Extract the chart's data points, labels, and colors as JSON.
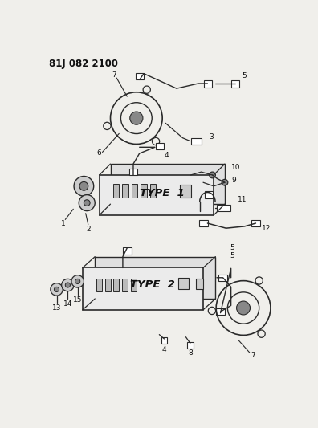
{
  "title": "81J 082 2100",
  "bg_color": "#f0efeb",
  "line_color": "#2a2a2a",
  "text_color": "#111111",
  "figsize": [
    3.96,
    5.33
  ],
  "dpi": 100
}
